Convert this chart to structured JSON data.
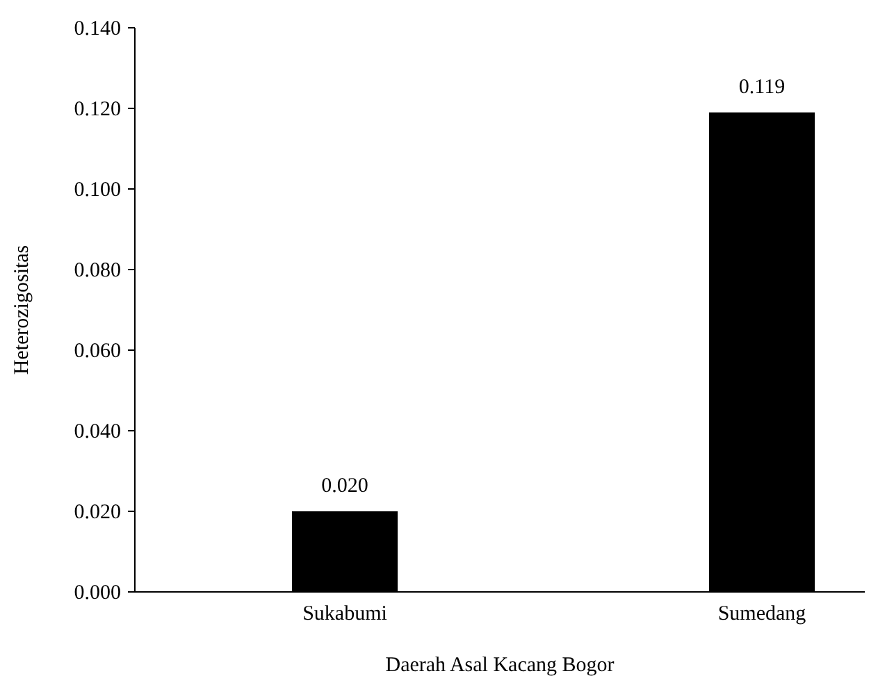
{
  "chart_data": {
    "type": "bar",
    "xlabel": "Daerah Asal Kacang Bogor",
    "ylabel": "Heterozigositas",
    "categories": [
      "Sukabumi",
      "Sumedang"
    ],
    "values": [
      0.02,
      0.119
    ],
    "color": "#000000",
    "value_labels": [
      "0.020",
      "0.119"
    ],
    "ylim": [
      0,
      0.14
    ],
    "yticks": [
      {
        "value": 0,
        "label": "0.000"
      },
      {
        "value": 0.02,
        "label": "0.020"
      },
      {
        "value": 0.04,
        "label": "0.040"
      },
      {
        "value": 0.06,
        "label": "0.060"
      },
      {
        "value": 0.08,
        "label": "0.080"
      },
      {
        "value": 0.1,
        "label": "0.100"
      },
      {
        "value": 0.12,
        "label": "0.120"
      },
      {
        "value": 0.14,
        "label": "0.140"
      }
    ],
    "grid": false
  }
}
